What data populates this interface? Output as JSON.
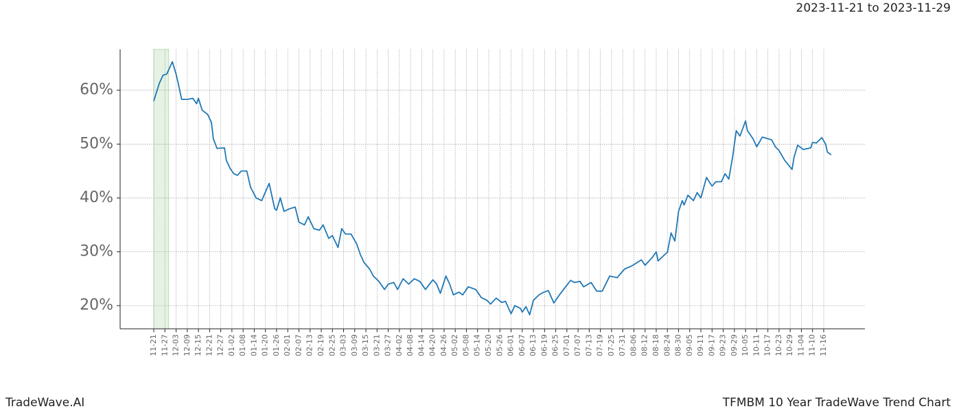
{
  "chart_data": {
    "type": "line",
    "date_range": "2023-11-21 to 2023-11-29",
    "brand": "TradeWave.AI",
    "title": "TFMBM 10 Year TradeWave Trend Chart",
    "color": "#1f77b4",
    "grid": true,
    "highlight": [
      "11-21",
      "11-29"
    ],
    "highlight_color": "#2ca02c",
    "ylim": [
      15.7,
      67.6
    ],
    "yticks": [
      {
        "value": 20,
        "label": "20%"
      },
      {
        "value": 30,
        "label": "30%"
      },
      {
        "value": 40,
        "label": "40%"
      },
      {
        "value": 50,
        "label": "50%"
      },
      {
        "value": 60,
        "label": "60%"
      }
    ],
    "xticks": [
      "11-21",
      "11-27",
      "12-03",
      "12-09",
      "12-15",
      "12-21",
      "12-27",
      "01-02",
      "01-08",
      "01-14",
      "01-20",
      "01-26",
      "02-01",
      "02-07",
      "02-13",
      "02-19",
      "02-25",
      "03-03",
      "03-09",
      "03-15",
      "03-21",
      "03-27",
      "04-02",
      "04-08",
      "04-14",
      "04-20",
      "04-26",
      "05-02",
      "05-08",
      "05-14",
      "05-20",
      "05-26",
      "06-01",
      "06-07",
      "06-13",
      "06-19",
      "06-25",
      "07-01",
      "07-07",
      "07-13",
      "07-19",
      "07-25",
      "07-31",
      "08-06",
      "08-12",
      "08-18",
      "08-24",
      "08-30",
      "09-05",
      "09-11",
      "09-17",
      "09-23",
      "09-29",
      "10-05",
      "10-11",
      "10-17",
      "10-23",
      "10-29",
      "11-04",
      "11-10",
      "11-16"
    ],
    "x": [
      "11-21",
      "11-24",
      "11-26",
      "11-28",
      "12-01",
      "12-03",
      "12-04",
      "12-06",
      "12-09",
      "12-12",
      "12-14",
      "12-15",
      "12-17",
      "12-20",
      "12-22",
      "12-23",
      "12-25",
      "12-29",
      "12-30",
      "01-01",
      "01-03",
      "01-05",
      "01-07",
      "01-10",
      "01-12",
      "01-15",
      "01-18",
      "01-22",
      "01-25",
      "01-26",
      "01-28",
      "01-30",
      "02-02",
      "02-05",
      "02-07",
      "02-10",
      "02-12",
      "02-15",
      "02-18",
      "02-20",
      "02-23",
      "02-25",
      "02-28",
      "03-02",
      "03-04",
      "03-07",
      "03-10",
      "03-12",
      "03-14",
      "03-17",
      "03-19",
      "03-22",
      "03-25",
      "03-27",
      "03-30",
      "04-01",
      "04-04",
      "04-07",
      "04-10",
      "04-13",
      "04-16",
      "04-20",
      "04-22",
      "04-24",
      "04-27",
      "04-29",
      "05-01",
      "05-04",
      "05-06",
      "05-09",
      "05-13",
      "05-16",
      "05-19",
      "05-21",
      "05-24",
      "05-27",
      "05-29",
      "06-01",
      "06-03",
      "06-06",
      "06-07",
      "06-09",
      "06-11",
      "06-13",
      "06-16",
      "06-18",
      "06-21",
      "06-24",
      "06-27",
      "07-01",
      "07-03",
      "07-05",
      "07-08",
      "07-10",
      "07-14",
      "07-17",
      "07-20",
      "07-24",
      "07-28",
      "08-01",
      "08-05",
      "08-10",
      "08-12",
      "08-16",
      "08-18",
      "08-19",
      "08-22",
      "08-24",
      "08-26",
      "08-28",
      "08-30",
      "09-01",
      "09-02",
      "09-04",
      "09-07",
      "09-09",
      "09-11",
      "09-14",
      "09-17",
      "09-19",
      "09-22",
      "09-24",
      "09-26",
      "09-28",
      "09-30",
      "10-02",
      "10-05",
      "10-06",
      "10-09",
      "10-11",
      "10-14",
      "10-17",
      "10-19",
      "10-21",
      "10-23",
      "10-26",
      "10-30",
      "10-31",
      "11-02",
      "11-05",
      "11-09",
      "11-10",
      "11-12",
      "11-15",
      "11-17",
      "11-18",
      "11-20"
    ],
    "values": [
      58,
      61.3,
      62.8,
      63,
      65.3,
      63,
      61.5,
      58.3,
      58.3,
      58.5,
      57.5,
      58.5,
      56.3,
      55.5,
      54,
      51,
      49.2,
      49.3,
      47,
      45.5,
      44.5,
      44.2,
      45,
      45,
      42,
      40,
      39.5,
      42.7,
      38,
      37.7,
      40,
      37.5,
      38,
      38.3,
      35.5,
      35,
      36.5,
      34.3,
      34,
      35,
      32.5,
      33,
      30.8,
      34.3,
      33.3,
      33.3,
      31.5,
      29.5,
      28,
      26.8,
      25.5,
      24.5,
      23,
      24,
      24.3,
      23,
      25,
      24,
      25,
      24.5,
      23,
      24.8,
      24,
      22.3,
      25.5,
      24,
      22,
      22.5,
      22,
      23.5,
      23,
      21.5,
      21,
      20.3,
      21.4,
      20.6,
      20.8,
      18.5,
      20,
      19.5,
      18.8,
      19.8,
      18.3,
      21,
      22,
      22.4,
      22.8,
      20.5,
      22,
      23.8,
      24.7,
      24.3,
      24.5,
      23.5,
      24.3,
      22.7,
      22.7,
      25.5,
      25.2,
      26.8,
      27.4,
      28.5,
      27.5,
      29,
      30,
      28.3,
      29.3,
      29.9,
      33.5,
      32,
      37.5,
      39.5,
      38.7,
      40.5,
      39.5,
      41,
      40,
      43.8,
      42.2,
      43,
      43,
      44.5,
      43.5,
      47.5,
      52.5,
      51.5,
      54.3,
      52.5,
      51,
      49.5,
      51.3,
      51,
      50.8,
      49.5,
      48.8,
      47,
      45.3,
      47.5,
      49.8,
      49,
      49.3,
      50.3,
      50.2,
      51.2,
      50,
      48.5,
      48
    ]
  }
}
